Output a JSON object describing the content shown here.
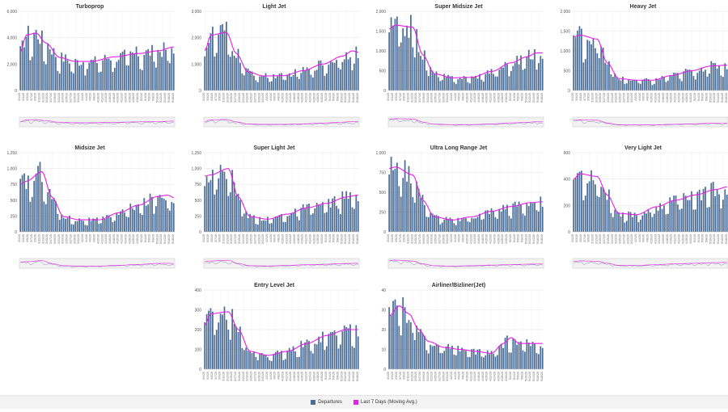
{
  "colors": {
    "bar": "#4b6d96",
    "line": "#e61ee6",
    "grid": "#e6e6e6",
    "nav_bg": "#f2f2f2"
  },
  "legend": {
    "departures": "Departures",
    "moving_avg": "Last 7 Days (Moving Avg.)"
  },
  "chart_data": [
    {
      "type": "bar",
      "title": "Turboprop",
      "yticks": [
        "0",
        "2,000",
        "4,000",
        "6,000"
      ],
      "ylim": [
        0,
        6000
      ],
      "anchors": [
        [
          0,
          2900
        ],
        [
          3,
          4200
        ],
        [
          8,
          4350
        ],
        [
          13,
          3600
        ],
        [
          20,
          2500
        ],
        [
          28,
          2200
        ],
        [
          36,
          2200
        ],
        [
          48,
          2550
        ],
        [
          60,
          2800
        ],
        [
          70,
          3000
        ],
        [
          78,
          3300
        ]
      ],
      "series": [
        {
          "name": "Departures"
        },
        {
          "name": "Last 7 Days (Moving Avg.)"
        }
      ]
    },
    {
      "type": "bar",
      "title": "Light Jet",
      "yticks": [
        "0",
        "1,000",
        "2,000",
        "3,000"
      ],
      "ylim": [
        0,
        3000
      ],
      "anchors": [
        [
          0,
          1500
        ],
        [
          3,
          2100
        ],
        [
          11,
          2200
        ],
        [
          16,
          1400
        ],
        [
          22,
          700
        ],
        [
          30,
          550
        ],
        [
          40,
          560
        ],
        [
          50,
          750
        ],
        [
          60,
          1000
        ],
        [
          70,
          1300
        ],
        [
          75,
          1500
        ],
        [
          78,
          1450
        ]
      ],
      "series": [
        {
          "name": "Departures"
        },
        {
          "name": "Last 7 Days (Moving Avg.)"
        }
      ]
    },
    {
      "type": "bar",
      "title": "Super Midsize Jet",
      "yticks": [
        "0",
        "500",
        "1,000",
        "1,500",
        "2,000"
      ],
      "ylim": [
        0,
        2000
      ],
      "anchors": [
        [
          0,
          1550
        ],
        [
          3,
          1650
        ],
        [
          12,
          1600
        ],
        [
          17,
          900
        ],
        [
          23,
          420
        ],
        [
          32,
          320
        ],
        [
          42,
          330
        ],
        [
          52,
          480
        ],
        [
          62,
          700
        ],
        [
          70,
          850
        ],
        [
          75,
          950
        ],
        [
          78,
          950
        ]
      ],
      "series": [
        {
          "name": "Departures"
        },
        {
          "name": "Last 7 Days (Moving Avg.)"
        }
      ]
    },
    {
      "type": "bar",
      "title": "Heavy Jet",
      "yticks": [
        "0",
        "500",
        "1,000",
        "1,500",
        "2,000"
      ],
      "ylim": [
        0,
        2000
      ],
      "anchors": [
        [
          0,
          1350
        ],
        [
          3,
          1400
        ],
        [
          12,
          1300
        ],
        [
          17,
          700
        ],
        [
          23,
          300
        ],
        [
          32,
          260
        ],
        [
          40,
          260
        ],
        [
          50,
          380
        ],
        [
          60,
          500
        ],
        [
          70,
          620
        ],
        [
          78,
          640
        ]
      ],
      "series": [
        {
          "name": "Departures"
        },
        {
          "name": "Last 7 Days (Moving Avg.)"
        }
      ]
    },
    {
      "type": "bar",
      "title": "Midsize Jet",
      "yticks": [
        "0",
        "250",
        "500",
        "750",
        "1,000",
        "1,250"
      ],
      "ylim": [
        0,
        1250
      ],
      "anchors": [
        [
          0,
          750
        ],
        [
          3,
          800
        ],
        [
          11,
          950
        ],
        [
          16,
          550
        ],
        [
          22,
          240
        ],
        [
          30,
          190
        ],
        [
          40,
          190
        ],
        [
          50,
          300
        ],
        [
          60,
          420
        ],
        [
          70,
          560
        ],
        [
          75,
          580
        ],
        [
          78,
          540
        ]
      ],
      "series": [
        {
          "name": "Departures"
        },
        {
          "name": "Last 7 Days (Moving Avg.)"
        }
      ]
    },
    {
      "type": "bar",
      "title": "Super Light Jet",
      "yticks": [
        "0",
        "250",
        "500",
        "750",
        "1,000",
        "1,250"
      ],
      "ylim": [
        0,
        1250
      ],
      "anchors": [
        [
          0,
          880
        ],
        [
          3,
          900
        ],
        [
          12,
          1000
        ],
        [
          17,
          550
        ],
        [
          23,
          240
        ],
        [
          32,
          200
        ],
        [
          42,
          280
        ],
        [
          52,
          380
        ],
        [
          62,
          450
        ],
        [
          72,
          550
        ],
        [
          78,
          580
        ]
      ],
      "series": [
        {
          "name": "Departures"
        },
        {
          "name": "Last 7 Days (Moving Avg.)"
        }
      ]
    },
    {
      "type": "bar",
      "title": "Ultra Long Range Jet",
      "yticks": [
        "0",
        "250",
        "500",
        "750",
        "1,000"
      ],
      "ylim": [
        0,
        1000
      ],
      "anchors": [
        [
          0,
          800
        ],
        [
          3,
          820
        ],
        [
          12,
          720
        ],
        [
          17,
          400
        ],
        [
          23,
          190
        ],
        [
          32,
          150
        ],
        [
          42,
          190
        ],
        [
          52,
          260
        ],
        [
          62,
          320
        ],
        [
          72,
          370
        ],
        [
          78,
          380
        ]
      ],
      "series": [
        {
          "name": "Departures"
        },
        {
          "name": "Last 7 Days (Moving Avg.)"
        }
      ]
    },
    {
      "type": "bar",
      "title": "Very Light Jet",
      "yticks": [
        "0",
        "200",
        "400",
        "600"
      ],
      "ylim": [
        0,
        600
      ],
      "anchors": [
        [
          0,
          400
        ],
        [
          3,
          440
        ],
        [
          12,
          420
        ],
        [
          17,
          280
        ],
        [
          23,
          140
        ],
        [
          32,
          130
        ],
        [
          42,
          190
        ],
        [
          52,
          240
        ],
        [
          62,
          280
        ],
        [
          72,
          320
        ],
        [
          78,
          340
        ]
      ],
      "series": [
        {
          "name": "Departures"
        },
        {
          "name": "Last 7 Days (Moving Avg.)"
        }
      ]
    },
    {
      "type": "bar",
      "title": "Entry Level Jet",
      "yticks": [
        "0",
        "100",
        "200",
        "300",
        "400"
      ],
      "ylim": [
        0,
        400
      ],
      "anchors": [
        [
          0,
          220
        ],
        [
          3,
          280
        ],
        [
          12,
          290
        ],
        [
          17,
          200
        ],
        [
          23,
          90
        ],
        [
          32,
          70
        ],
        [
          42,
          90
        ],
        [
          52,
          130
        ],
        [
          62,
          170
        ],
        [
          72,
          200
        ],
        [
          78,
          200
        ]
      ],
      "series": [
        {
          "name": "Departures"
        },
        {
          "name": "Last 7 Days (Moving Avg.)"
        }
      ]
    },
    {
      "type": "bar",
      "title": "Airliner/Bizliner(Jet)",
      "yticks": [
        "0",
        "10",
        "20",
        "30",
        "40"
      ],
      "ylim": [
        0,
        40
      ],
      "anchors": [
        [
          0,
          27
        ],
        [
          5,
          32
        ],
        [
          10,
          28
        ],
        [
          15,
          20
        ],
        [
          20,
          14
        ],
        [
          28,
          11
        ],
        [
          36,
          10
        ],
        [
          44,
          9
        ],
        [
          52,
          8
        ],
        [
          58,
          13
        ],
        [
          62,
          16
        ],
        [
          66,
          13
        ],
        [
          72,
          13
        ],
        [
          78,
          13
        ]
      ],
      "series": [
        {
          "name": "Departures"
        },
        {
          "name": "Last 7 Days (Moving Avg.)"
        }
      ]
    }
  ],
  "dates": [
    "3/1/20",
    "3/3/20",
    "3/5/20",
    "3/7/20",
    "3/9/20",
    "3/11/20",
    "3/13/20",
    "3/15/20",
    "3/17/20",
    "3/19/20",
    "3/21/20",
    "3/23/20",
    "3/25/20",
    "3/27/20",
    "3/29/20",
    "3/31/20",
    "4/2/20",
    "4/4/20",
    "4/6/20",
    "4/8/20",
    "4/10/20",
    "4/12/20",
    "4/14/20",
    "4/16/20",
    "4/18/20",
    "4/20/20",
    "4/22/20",
    "4/24/20",
    "4/26/20",
    "4/28/20",
    "4/30/20",
    "5/2/20",
    "5/4/20",
    "5/6/20",
    "5/8/20",
    "5/10/20",
    "5/12/20",
    "5/14/20",
    "5/16/20",
    "5/18/20"
  ]
}
